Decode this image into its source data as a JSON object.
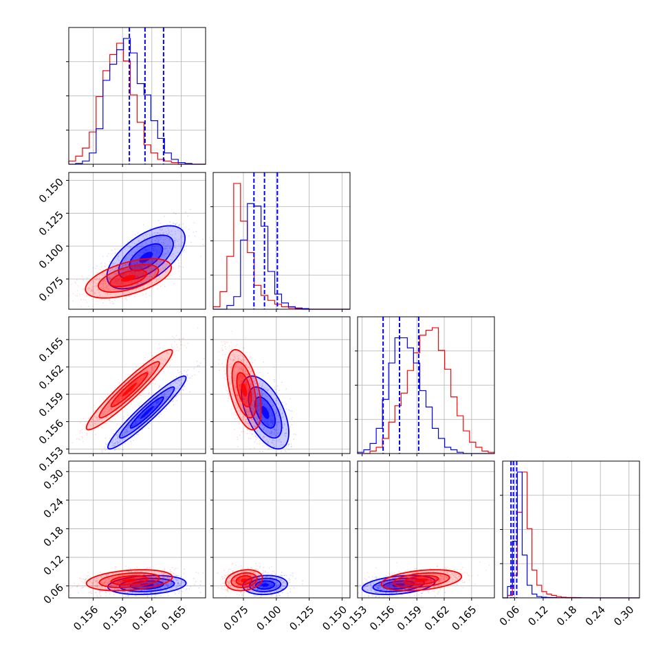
{
  "chart_data": {
    "type": "corner",
    "title": "",
    "grid": true,
    "colors": {
      "series_a": "#0000ff",
      "series_b": "#ff0000",
      "quantile_lines": "#0000ff"
    },
    "series": [
      {
        "name": ""
      },
      {
        "name": ""
      }
    ],
    "params": [
      {
        "range": [
          0.1535,
          0.1675
        ],
        "ticks": [
          0.156,
          0.159,
          0.162,
          0.165
        ],
        "tick_labels": [
          "0.156",
          "0.159",
          "0.162",
          "0.165"
        ]
      },
      {
        "range": [
          0.052,
          0.156
        ],
        "ticks": [
          0.075,
          0.1,
          0.125,
          0.15
        ],
        "tick_labels": [
          "0.075",
          "0.100",
          "0.125",
          "0.150"
        ]
      },
      {
        "range": [
          0.1525,
          0.1675
        ],
        "ticks": [
          0.153,
          0.156,
          0.159,
          0.162,
          0.165
        ],
        "tick_labels": [
          "0.153",
          "0.156",
          "0.159",
          "0.162",
          "0.165"
        ]
      },
      {
        "range": [
          0.035,
          0.322
        ],
        "ticks": [
          0.06,
          0.12,
          0.18,
          0.24,
          0.3
        ],
        "tick_labels": [
          "0.06",
          "0.12",
          "0.18",
          "0.24",
          "0.30"
        ]
      }
    ],
    "marginals": [
      {
        "bins": [
          0.1535,
          0.1675,
          20
        ],
        "series_a": [
          0,
          0.5,
          2,
          7,
          22,
          52,
          62,
          71,
          78,
          69,
          50,
          43,
          27,
          16,
          7,
          3,
          1,
          0.5,
          0,
          0
        ],
        "series_b": [
          2,
          5,
          10,
          20,
          42,
          58,
          68,
          75,
          64,
          43,
          26,
          12,
          7,
          3,
          2,
          1,
          0,
          0,
          0,
          0
        ],
        "quantiles": [
          0.1597,
          0.1613,
          0.1632
        ]
      },
      {
        "bins": [
          0.052,
          0.156,
          20
        ],
        "series_a": [
          0,
          0,
          3,
          10,
          55,
          84,
          82,
          66,
          30,
          12,
          5,
          2,
          1,
          0.5,
          0,
          0,
          0,
          0,
          0,
          0
        ],
        "series_b": [
          2,
          14,
          42,
          100,
          70,
          45,
          19,
          11,
          7,
          4,
          2,
          1,
          0.5,
          0,
          0,
          0,
          0,
          0,
          0,
          0
        ],
        "quantiles": [
          0.083,
          0.091,
          0.1008
        ]
      },
      {
        "bins": [
          0.1525,
          0.1675,
          22
        ],
        "series_a": [
          1,
          3,
          8,
          20,
          43,
          72,
          92,
          92,
          84,
          72,
          50,
          37,
          20,
          12,
          5,
          3,
          1,
          0,
          0,
          0,
          0,
          0
        ],
        "series_b": [
          0,
          0,
          2,
          5,
          12,
          25,
          38,
          48,
          66,
          80,
          94,
          98,
          100,
          82,
          67,
          45,
          30,
          18,
          9,
          5,
          2,
          1
        ],
        "quantiles": [
          0.1553,
          0.1571,
          0.1592
        ]
      },
      {
        "bins": [
          0.035,
          0.322,
          28
        ],
        "series_a": [
          0,
          9,
          45,
          100,
          34,
          10,
          3,
          1,
          0.5,
          0.3,
          0.2,
          0.1,
          0.1,
          0,
          0,
          0,
          0,
          0,
          0,
          0,
          0,
          0,
          0,
          0,
          0,
          0,
          0,
          0
        ],
        "series_b": [
          0,
          2,
          18,
          68,
          100,
          55,
          22,
          10,
          5,
          3,
          2,
          1,
          0.5,
          0.3,
          0.3,
          0.2,
          0.1,
          0.1,
          0,
          0,
          0,
          0,
          0,
          0,
          0,
          0,
          0,
          0
        ],
        "quantiles": [
          0.0525,
          0.0575,
          0.0645
        ]
      }
    ],
    "joint": [
      {
        "i": 1,
        "j": 0,
        "series_a": {
          "cx": 0.1614,
          "cy": 0.0915,
          "sx": 0.002,
          "sy": 0.012,
          "rho": 0.6
        },
        "series_b": {
          "cx": 0.1596,
          "cy": 0.0755,
          "sx": 0.0022,
          "sy": 0.0075,
          "rho": 0.55
        }
      },
      {
        "i": 2,
        "j": 0,
        "series_a": {
          "cx": 0.1615,
          "cy": 0.157,
          "sx": 0.002,
          "sy": 0.002,
          "rho": 0.95
        },
        "series_b": {
          "cx": 0.1597,
          "cy": 0.1595,
          "sx": 0.0022,
          "sy": 0.0022,
          "rho": 0.95
        }
      },
      {
        "i": 3,
        "j": 0,
        "series_a": {
          "cx": 0.1615,
          "cy": 0.062,
          "sx": 0.002,
          "sy": 0.01,
          "rho": 0.2
        },
        "series_b": {
          "cx": 0.1597,
          "cy": 0.072,
          "sx": 0.0022,
          "sy": 0.011,
          "rho": 0.3
        }
      },
      {
        "i": 2,
        "j": 1,
        "series_a": {
          "cx": 0.0915,
          "cy": 0.157,
          "sx": 0.009,
          "sy": 0.002,
          "rho": -0.55
        },
        "series_b": {
          "cx": 0.0755,
          "cy": 0.1595,
          "sx": 0.0065,
          "sy": 0.0022,
          "rho": -0.5
        }
      },
      {
        "i": 3,
        "j": 1,
        "series_a": {
          "cx": 0.0915,
          "cy": 0.062,
          "sx": 0.0085,
          "sy": 0.01,
          "rho": 0.1
        },
        "series_b": {
          "cx": 0.0755,
          "cy": 0.072,
          "sx": 0.007,
          "sy": 0.011,
          "rho": 0.2
        }
      },
      {
        "i": 3,
        "j": 2,
        "series_a": {
          "cx": 0.157,
          "cy": 0.062,
          "sx": 0.002,
          "sy": 0.01,
          "rho": 0.35
        },
        "series_b": {
          "cx": 0.1595,
          "cy": 0.072,
          "sx": 0.0022,
          "sy": 0.011,
          "rho": 0.35
        }
      }
    ]
  }
}
